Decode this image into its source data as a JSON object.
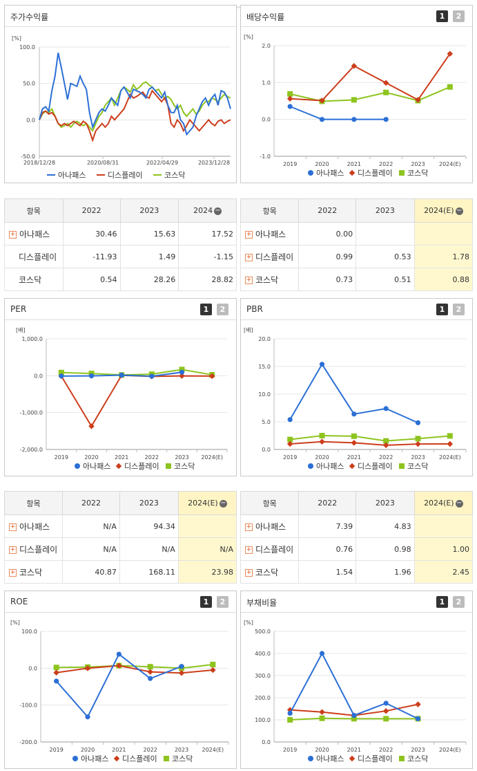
{
  "legend": [
    "아나패스",
    "디스플레이",
    "코스닥"
  ],
  "colors": {
    "anapass": "#2b6fd6",
    "display": "#cc3d1b",
    "kosdaq": "#8dc41e"
  },
  "panels": {
    "stock": {
      "title": "주가수익률",
      "unit": "[%]"
    },
    "dividend": {
      "title": "배당수익률",
      "unit": "[%]",
      "pages": [
        "1",
        "2"
      ]
    },
    "per": {
      "title": "PER",
      "unit": "[배]",
      "pages": [
        "1",
        "2"
      ]
    },
    "pbr": {
      "title": "PBR",
      "unit": "[배]",
      "pages": [
        "1",
        "2"
      ]
    },
    "roe": {
      "title": "ROE",
      "unit": "[%]",
      "pages": [
        "1",
        "2"
      ]
    },
    "debt": {
      "title": "부채비율",
      "unit": "[%]",
      "pages": [
        "1",
        "2"
      ]
    }
  },
  "chart_data": [
    {
      "id": "stock",
      "type": "line",
      "title": "주가수익률",
      "ylabel": "[%]",
      "ylim": [
        -50,
        100
      ],
      "yticks": [
        "100.0",
        "50.0",
        "0.0",
        "-50.0"
      ],
      "xticks": [
        "2018/12/28",
        "2020/08/31",
        "2022/04/29",
        "2023/12/28"
      ],
      "x_range": [
        "2018/12/28",
        "2024/05"
      ],
      "series": [
        {
          "name": "아나패스",
          "values": [
            0,
            15,
            18,
            12,
            40,
            60,
            92,
            72,
            50,
            28,
            50,
            48,
            46,
            60,
            50,
            42,
            10,
            -10,
            0,
            10,
            15,
            12,
            20,
            30,
            25,
            20,
            40,
            45,
            38,
            30,
            42,
            40,
            38,
            35,
            30,
            42,
            45,
            40,
            35,
            30,
            38,
            20,
            10,
            10,
            20,
            0,
            -5,
            -20,
            -15,
            -10,
            5,
            15,
            25,
            30,
            20,
            30,
            35,
            20,
            40,
            38,
            30,
            15
          ]
        },
        {
          "name": "디스플레이",
          "values": [
            0,
            10,
            12,
            8,
            10,
            5,
            -5,
            -8,
            -5,
            -8,
            -5,
            -2,
            -5,
            -8,
            -2,
            -5,
            -15,
            -28,
            -15,
            -10,
            -5,
            -10,
            -5,
            5,
            0,
            5,
            10,
            15,
            25,
            35,
            30,
            32,
            35,
            38,
            32,
            30,
            40,
            35,
            30,
            25,
            30,
            20,
            -5,
            -10,
            0,
            -5,
            -15,
            -8,
            0,
            -5,
            -10,
            -15,
            -10,
            -5,
            0,
            -5,
            -8,
            -2,
            0,
            -5,
            -2,
            0
          ]
        },
        {
          "name": "코스닥",
          "values": [
            0,
            8,
            12,
            10,
            15,
            5,
            -5,
            -10,
            -8,
            -5,
            -10,
            -5,
            -2,
            -5,
            -8,
            -5,
            -10,
            -15,
            -5,
            5,
            10,
            20,
            25,
            30,
            20,
            30,
            40,
            45,
            42,
            38,
            48,
            42,
            45,
            50,
            52,
            48,
            45,
            40,
            42,
            35,
            30,
            32,
            28,
            20,
            15,
            20,
            10,
            5,
            10,
            15,
            8,
            12,
            20,
            25,
            25,
            30,
            28,
            25,
            30,
            35,
            32,
            30
          ]
        }
      ]
    },
    {
      "id": "dividend",
      "type": "line",
      "title": "배당수익률",
      "ylabel": "[%]",
      "ylim": [
        -1,
        2
      ],
      "yticks": [
        "2.0",
        "1.0",
        "0.0",
        "-1.0"
      ],
      "categories": [
        "2019",
        "2020",
        "2021",
        "2022",
        "2023",
        "2024(E)"
      ],
      "series": [
        {
          "name": "아나패스",
          "values": [
            0.35,
            0.0,
            0.0,
            0.0,
            null,
            null
          ]
        },
        {
          "name": "디스플레이",
          "values": [
            0.56,
            0.51,
            1.45,
            0.99,
            0.53,
            1.78
          ]
        },
        {
          "name": "코스닥",
          "values": [
            0.69,
            0.49,
            0.53,
            0.73,
            0.51,
            0.88
          ]
        }
      ]
    },
    {
      "id": "per",
      "type": "line",
      "title": "PER",
      "ylabel": "[배]",
      "ylim": [
        -2000,
        1000
      ],
      "yticks": [
        "1,000.0",
        "0.0",
        "-1,000.0",
        "-2,000.0"
      ],
      "categories": [
        "2019",
        "2020",
        "2021",
        "2022",
        "2023",
        "2024(E)"
      ],
      "series": [
        {
          "name": "아나패스",
          "values": [
            -10,
            -5,
            15,
            -15,
            94.34,
            null
          ]
        },
        {
          "name": "디스플레이",
          "values": [
            -10,
            -1370,
            10,
            -20,
            -5,
            -10
          ]
        },
        {
          "name": "코스닥",
          "values": [
            85,
            60,
            20,
            40.87,
            168.11,
            23.98
          ]
        }
      ]
    },
    {
      "id": "pbr",
      "type": "line",
      "title": "PBR",
      "ylabel": "[배]",
      "ylim": [
        0,
        20
      ],
      "yticks": [
        "20.0",
        "15.0",
        "10.0",
        "5.0",
        "0.0"
      ],
      "categories": [
        "2019",
        "2020",
        "2021",
        "2022",
        "2023",
        "2024(E)"
      ],
      "series": [
        {
          "name": "아나패스",
          "values": [
            5.4,
            15.4,
            6.4,
            7.39,
            4.83,
            null
          ]
        },
        {
          "name": "디스플레이",
          "values": [
            1.0,
            1.4,
            1.2,
            0.76,
            0.98,
            1.0
          ]
        },
        {
          "name": "코스닥",
          "values": [
            1.8,
            2.5,
            2.4,
            1.54,
            1.96,
            2.45
          ]
        }
      ]
    },
    {
      "id": "roe",
      "type": "line",
      "title": "ROE",
      "ylabel": "[%]",
      "ylim": [
        -200,
        100
      ],
      "yticks": [
        "100.0",
        "0.0",
        "-100.0",
        "-200.0"
      ],
      "categories": [
        "2019",
        "2020",
        "2021",
        "2022",
        "2023",
        "2024(E)"
      ],
      "series": [
        {
          "name": "아나패스",
          "values": [
            -35,
            -132,
            38,
            -28,
            5,
            null
          ]
        },
        {
          "name": "디스플레이",
          "values": [
            -12,
            0,
            7,
            -10,
            -13,
            -5
          ]
        },
        {
          "name": "코스닥",
          "values": [
            2,
            3,
            7,
            4,
            0,
            10
          ]
        }
      ]
    },
    {
      "id": "debt",
      "type": "line",
      "title": "부채비율",
      "ylabel": "[%]",
      "ylim": [
        0,
        500
      ],
      "yticks": [
        "500.0",
        "400.0",
        "300.0",
        "200.0",
        "100.0",
        "0.0"
      ],
      "categories": [
        "2019",
        "2020",
        "2021",
        "2022",
        "2023",
        "2024(E)"
      ],
      "series": [
        {
          "name": "아나패스",
          "values": [
            130,
            400,
            120,
            175,
            105,
            null
          ]
        },
        {
          "name": "디스플레이",
          "values": [
            145,
            135,
            120,
            140,
            170,
            null
          ]
        },
        {
          "name": "코스닥",
          "values": [
            100,
            107,
            105,
            105,
            105,
            null
          ]
        }
      ]
    }
  ],
  "tables": {
    "t1": {
      "header": [
        "항목",
        "2022",
        "2023",
        "2024"
      ],
      "highlight_last": false,
      "rows": [
        {
          "name": "아나패스",
          "plus": true,
          "values": [
            "30.46",
            "15.63",
            "17.52"
          ]
        },
        {
          "name": "디스플레이",
          "plus": false,
          "values": [
            "-11.93",
            "1.49",
            "-1.15"
          ]
        },
        {
          "name": "코스닥",
          "plus": false,
          "values": [
            "0.54",
            "28.26",
            "28.82"
          ]
        }
      ]
    },
    "t2": {
      "header": [
        "항목",
        "2022",
        "2023",
        "2024(E)"
      ],
      "highlight_last": true,
      "rows": [
        {
          "name": "아나패스",
          "plus": true,
          "values": [
            "0.00",
            "",
            ""
          ]
        },
        {
          "name": "디스플레이",
          "plus": true,
          "values": [
            "0.99",
            "0.53",
            "1.78"
          ]
        },
        {
          "name": "코스닥",
          "plus": true,
          "values": [
            "0.73",
            "0.51",
            "0.88"
          ]
        }
      ]
    },
    "t3": {
      "header": [
        "항목",
        "2022",
        "2023",
        "2024(E)"
      ],
      "highlight_last": true,
      "rows": [
        {
          "name": "아나패스",
          "plus": true,
          "values": [
            "N/A",
            "94.34",
            ""
          ]
        },
        {
          "name": "디스플레이",
          "plus": true,
          "values": [
            "N/A",
            "N/A",
            "N/A"
          ]
        },
        {
          "name": "코스닥",
          "plus": true,
          "values": [
            "40.87",
            "168.11",
            "23.98"
          ]
        }
      ]
    },
    "t4": {
      "header": [
        "항목",
        "2022",
        "2023",
        "2024(E)"
      ],
      "highlight_last": true,
      "rows": [
        {
          "name": "아나패스",
          "plus": true,
          "values": [
            "7.39",
            "4.83",
            ""
          ]
        },
        {
          "name": "디스플레이",
          "plus": true,
          "values": [
            "0.76",
            "0.98",
            "1.00"
          ]
        },
        {
          "name": "코스닥",
          "plus": true,
          "values": [
            "1.54",
            "1.96",
            "2.45"
          ]
        }
      ]
    }
  },
  "collapse_icon": "minus-circle-icon",
  "expand_icon": "plus-square-icon"
}
